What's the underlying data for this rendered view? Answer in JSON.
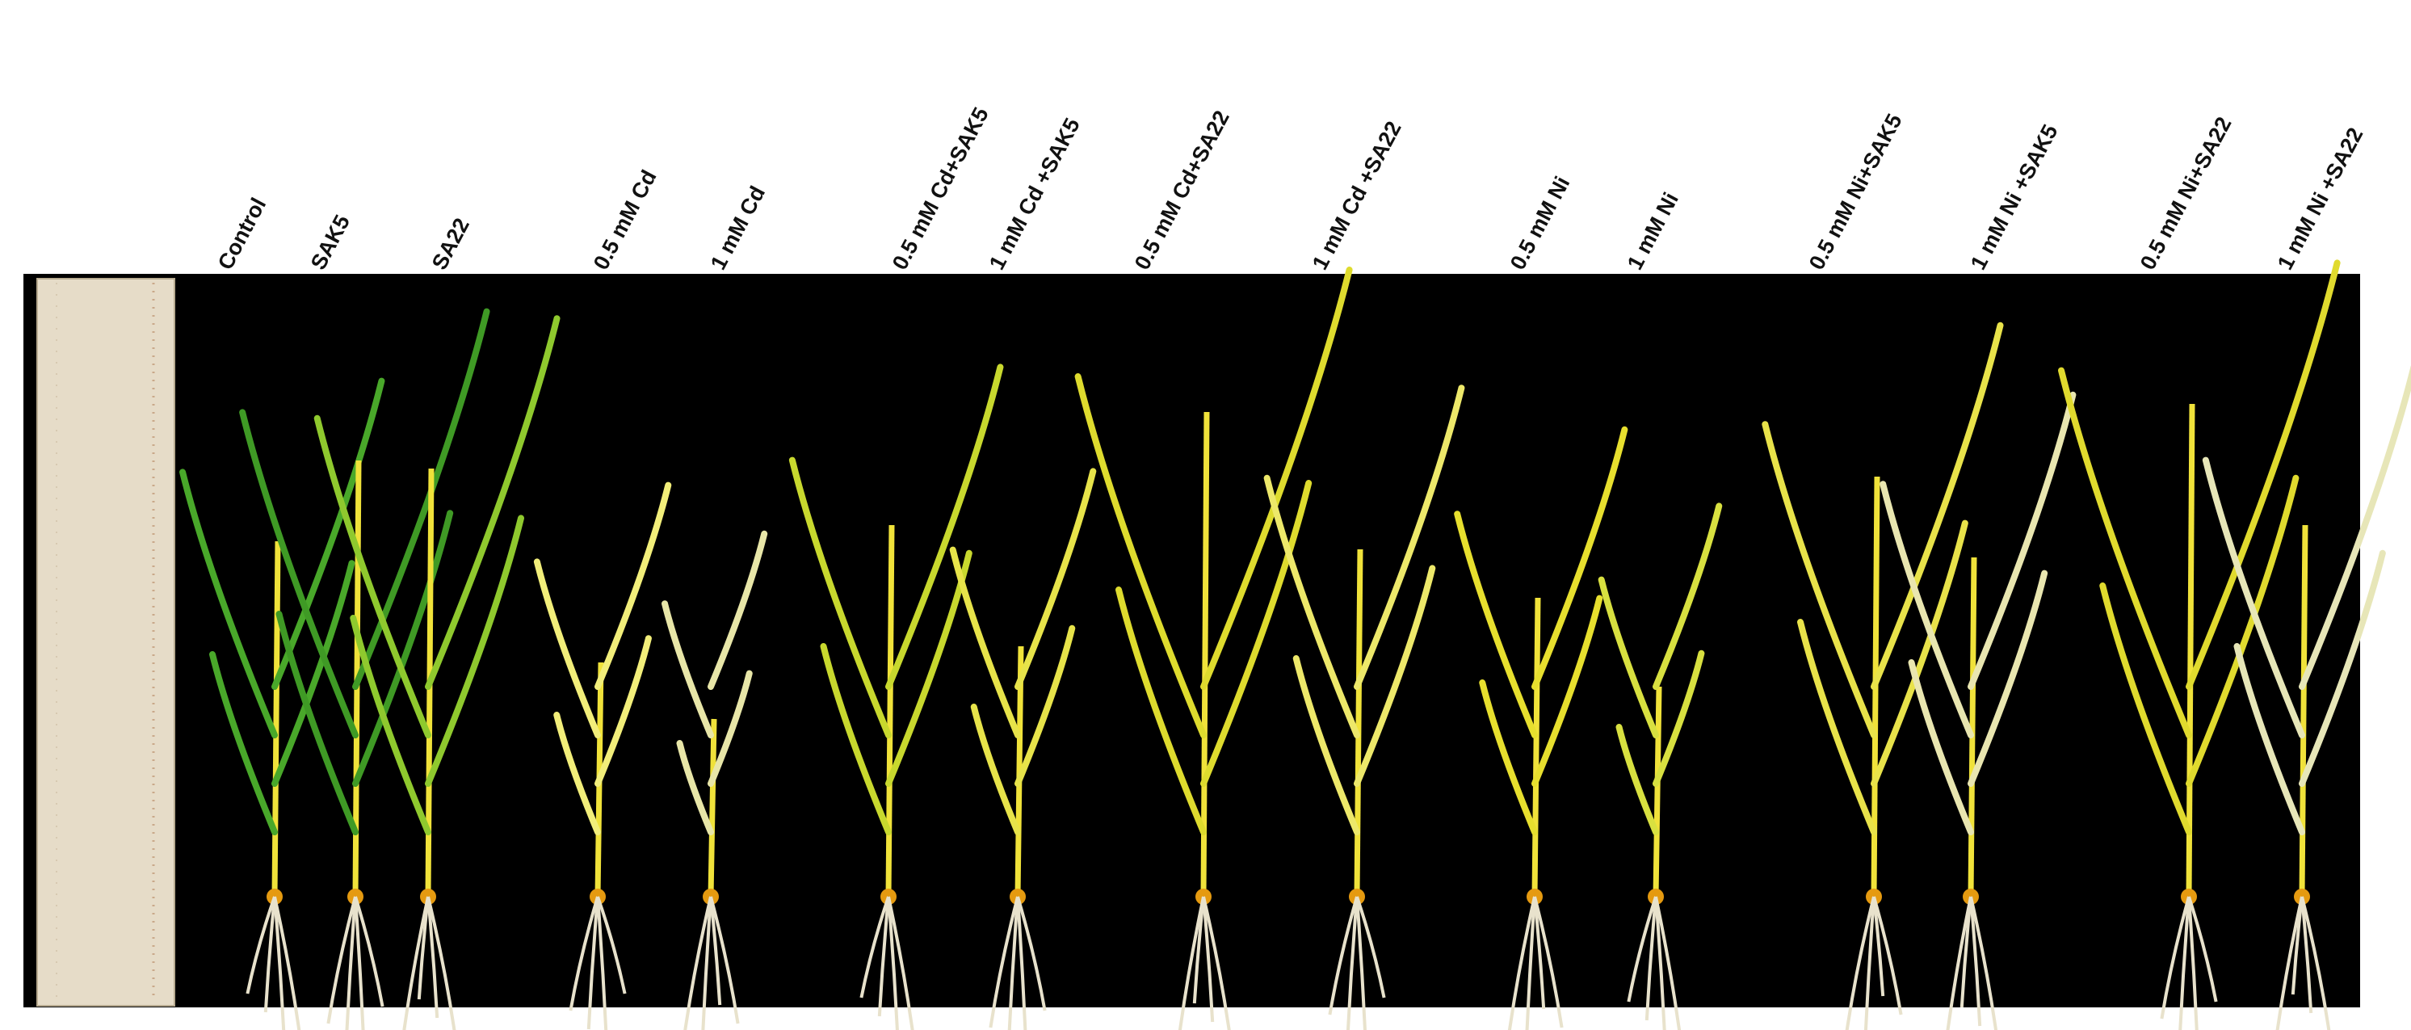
{
  "labels": [
    "Control",
    "SAK5",
    "SA22",
    "0.5 mM Cd",
    "1 mM Cd",
    "0.5 mM Cd+SAK5",
    "1 mM Cd +SAK5",
    "0.5 mM Cd+SA22",
    "1 mM Cd +SA22",
    "0.5 mM Ni",
    "1 mM Ni",
    "0.5 mM Ni+SAK5",
    "1 mM Ni +SAK5",
    "0.5 mM Ni+SA22",
    "1 mM Ni +SA22"
  ]
}
